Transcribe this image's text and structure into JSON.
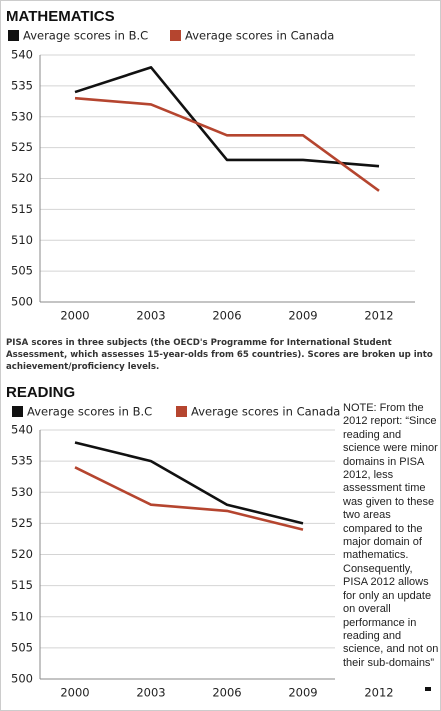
{
  "chart_data": [
    {
      "type": "line",
      "title": "MATHEMATICS",
      "categories": [
        "2000",
        "2003",
        "2006",
        "2009",
        "2012"
      ],
      "series": [
        {
          "name": "Average scores in B.C",
          "color": "#111111",
          "values": [
            534,
            538,
            523,
            523,
            522
          ]
        },
        {
          "name": "Average scores in Canada",
          "color": "#b5452f",
          "values": [
            533,
            532,
            527,
            527,
            518
          ]
        }
      ],
      "ylim": [
        500,
        540
      ],
      "yticks": [
        500,
        505,
        510,
        515,
        520,
        525,
        530,
        535,
        540
      ],
      "grid": true,
      "caption": "PISA scores in three subjects (the OECD's Programme for International Student Assessment, which assesses 15-year-olds from 65 countries). Scores are broken up into achievement/proficiency levels."
    },
    {
      "type": "line",
      "title": "READING",
      "categories": [
        "2000",
        "2003",
        "2006",
        "2009",
        "2012"
      ],
      "series": [
        {
          "name": "Average scores in B.C",
          "color": "#111111",
          "values": [
            538,
            535,
            528,
            525,
            null
          ]
        },
        {
          "name": "Average scores in Canada",
          "color": "#b5452f",
          "values": [
            534,
            528,
            527,
            524,
            null
          ]
        }
      ],
      "ylim": [
        500,
        540
      ],
      "yticks": [
        500,
        505,
        510,
        515,
        520,
        525,
        530,
        535,
        540
      ],
      "grid": true,
      "note": "NOTE: From the 2012 report: “Since reading and science were minor domains in PISA 2012, less assessment time was given to these two areas compared to the major domain of mathematics. Consequently, PISA 2012 allows for only an update on overall performance in reading and science, and not on their sub-domains”"
    }
  ]
}
